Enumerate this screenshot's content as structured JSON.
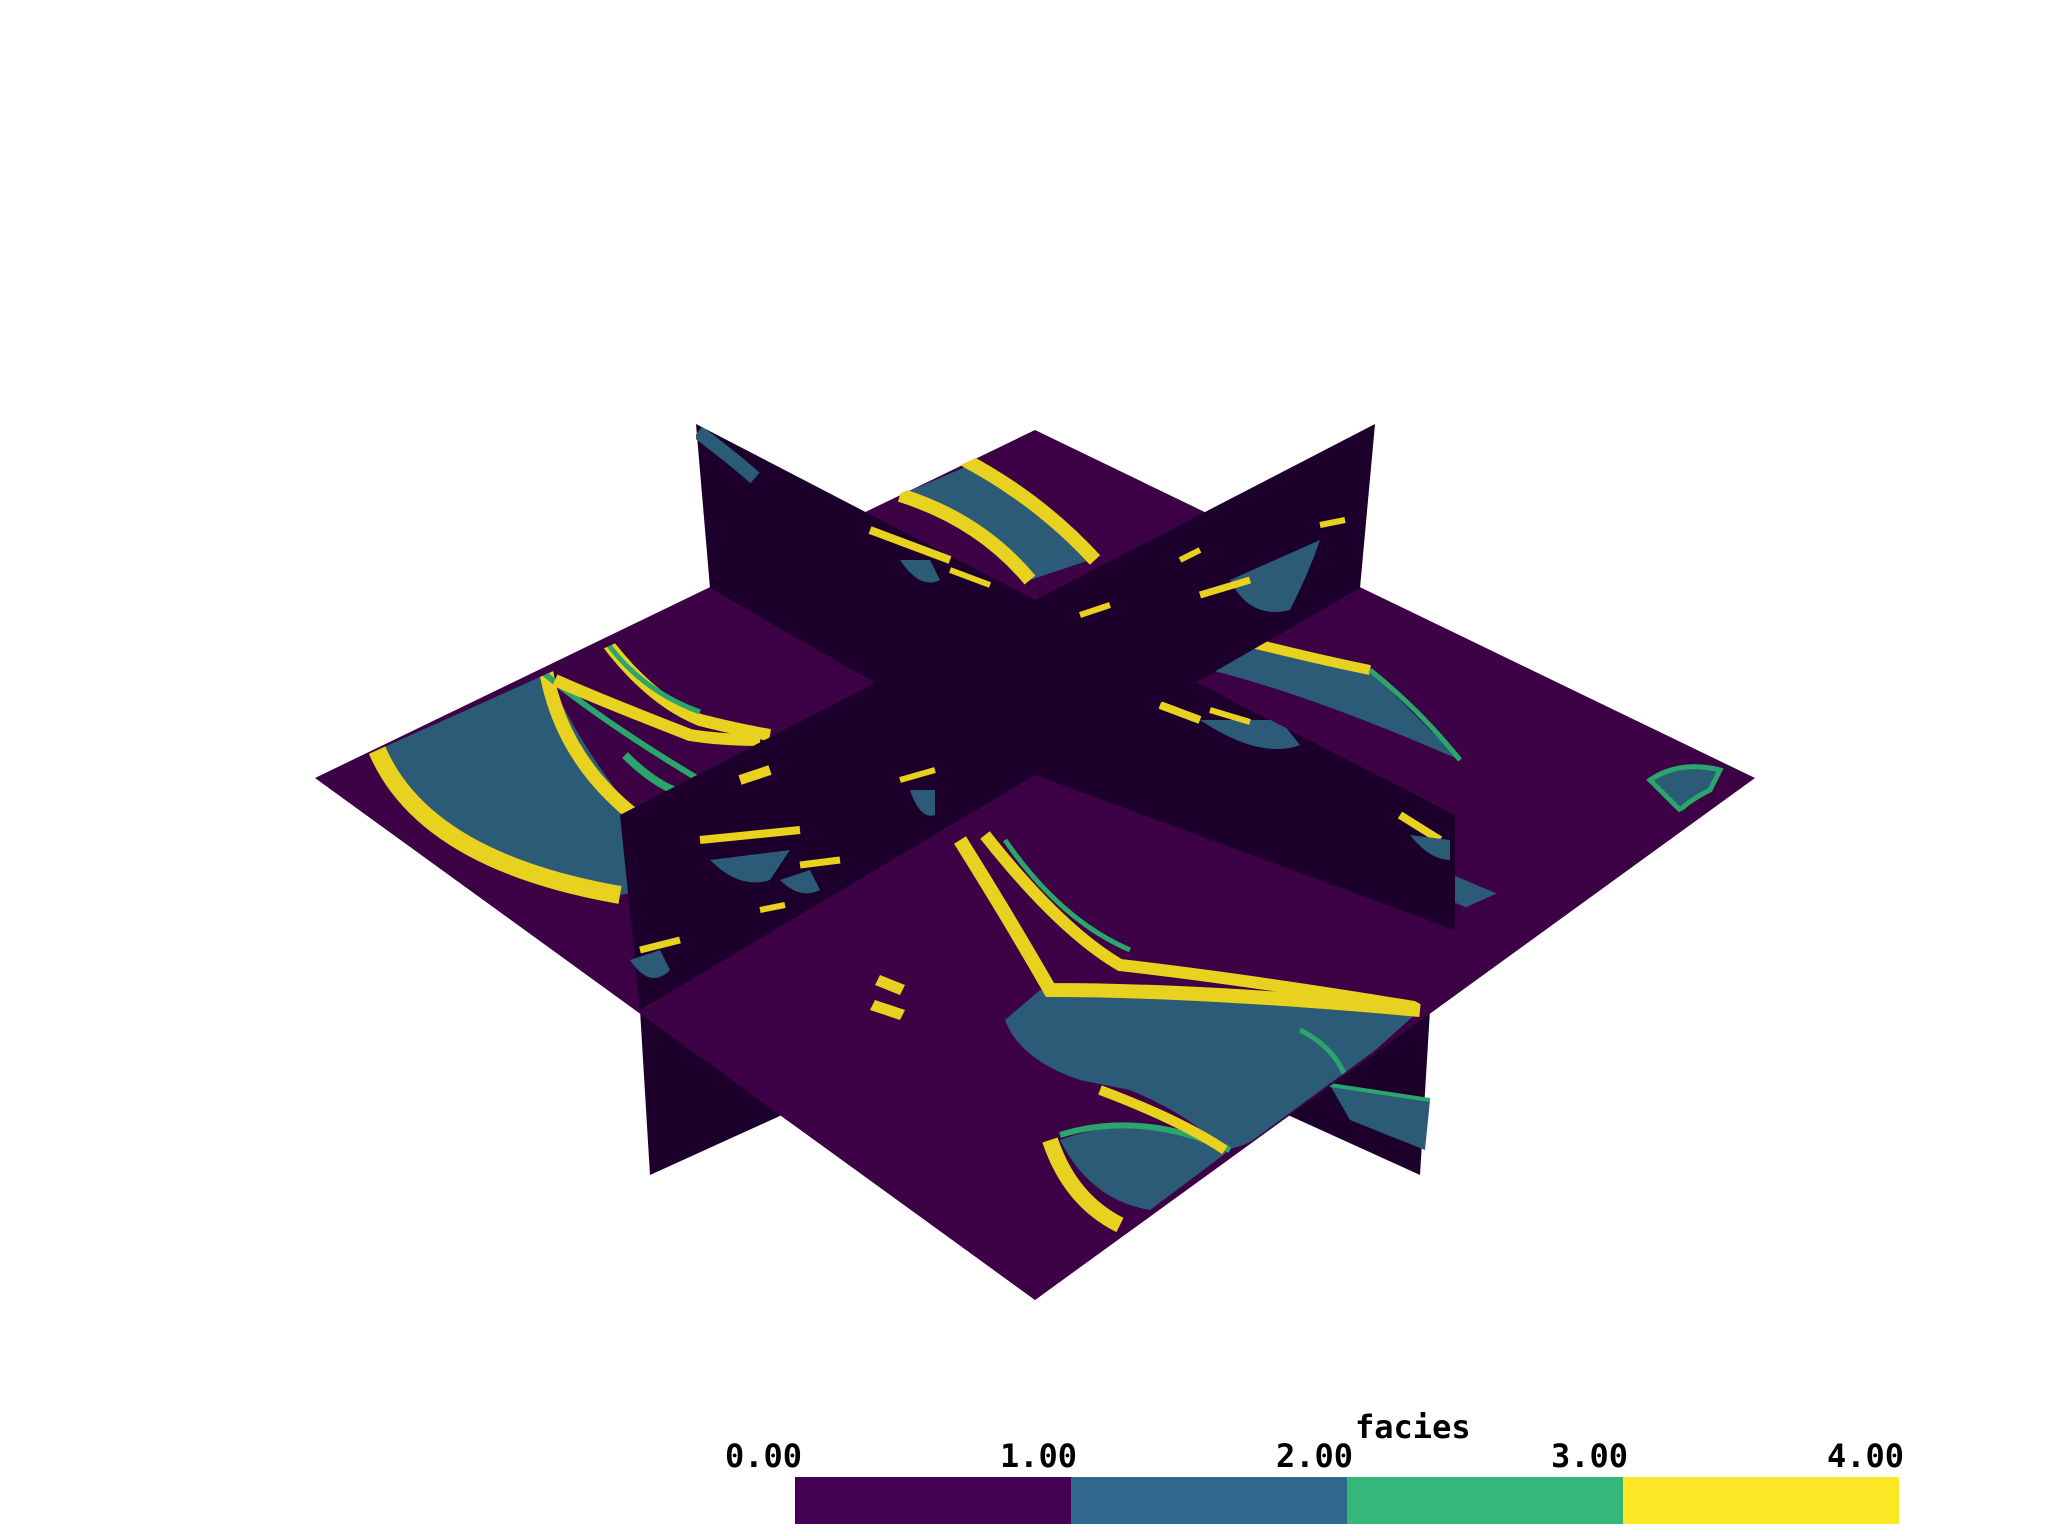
{
  "colorbar": {
    "title": "facies",
    "ticks": [
      "0.00",
      "1.00",
      "2.00",
      "3.00",
      "4.00"
    ],
    "colors": [
      "#440154",
      "#31688e",
      "#35b779",
      "#fde725"
    ]
  },
  "palette": {
    "background_facies": "#3d0145",
    "channel_fill": "#2b5b77",
    "channel_edge": "#2aa56b",
    "levee": "#e8d21f",
    "slice_shade": "#1c002b"
  }
}
